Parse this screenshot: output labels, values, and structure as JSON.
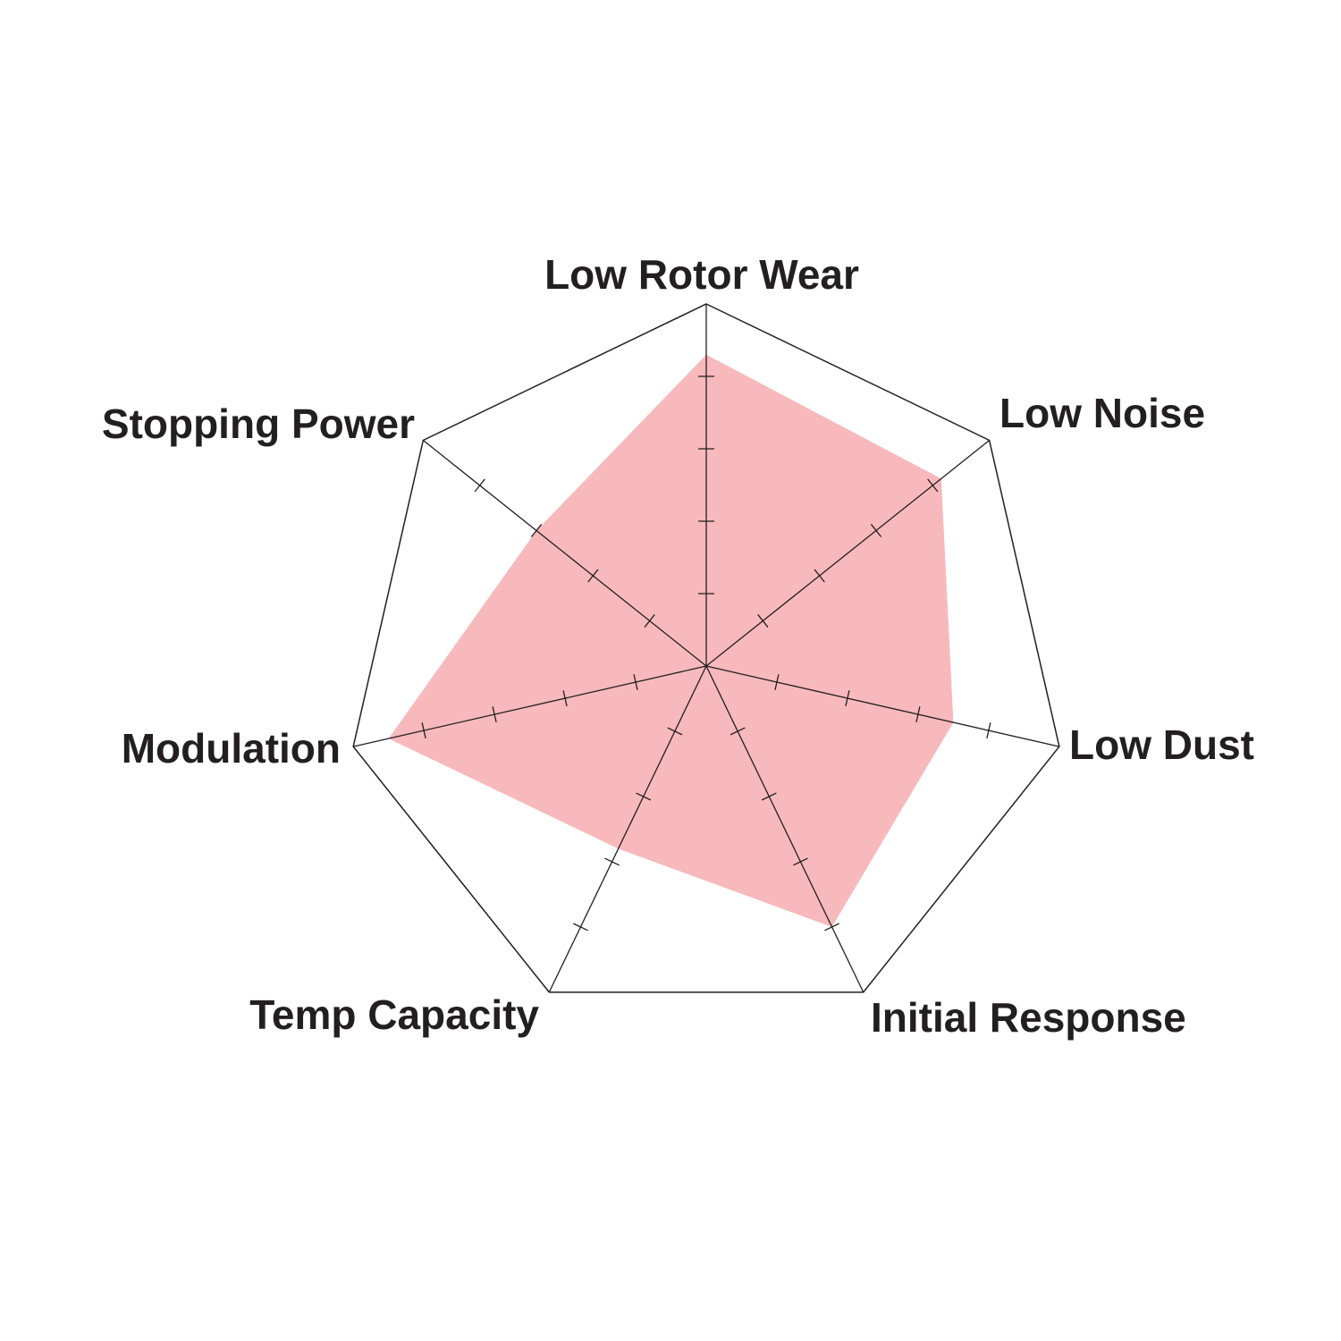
{
  "chart_data": {
    "type": "radar",
    "title": "",
    "axes": [
      "Low Rotor Wear",
      "Low Noise",
      "Low Dust",
      "Initial Response",
      "Temp Capacity",
      "Modulation",
      "Stopping Power"
    ],
    "range": [
      0,
      5
    ],
    "tick_step": 1,
    "series": [
      {
        "values": [
          4.3,
          4.15,
          3.5,
          4.0,
          2.8,
          4.5,
          3.0
        ],
        "color": "#f8b9bc"
      }
    ],
    "grid": "outer polygon only",
    "line_color": "#231f20"
  }
}
